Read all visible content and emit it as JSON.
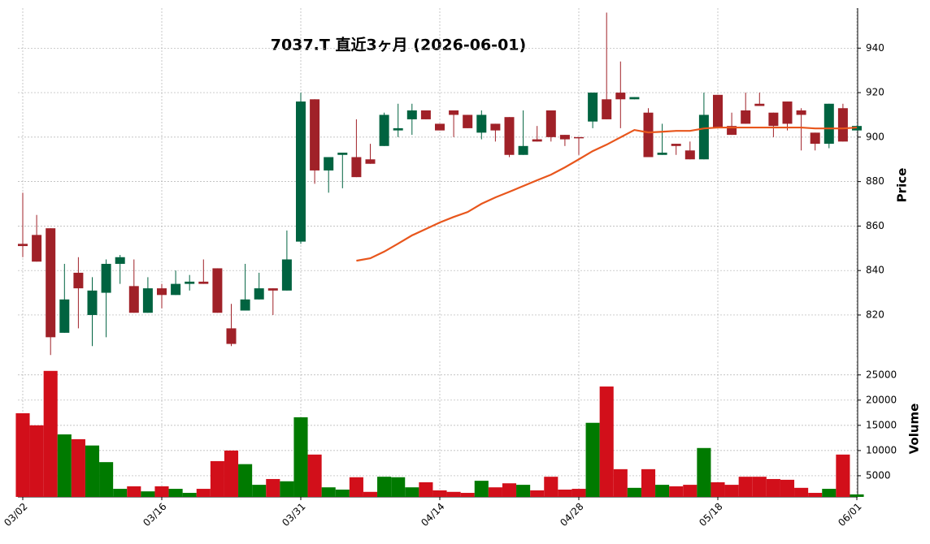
{
  "chart_data": {
    "type": "candlestick",
    "title": "7037.T  直近3ヶ月  (2026-06-01)",
    "ylabel": "Price",
    "categories": [
      "03/02",
      null,
      null,
      null,
      null,
      null,
      null,
      null,
      null,
      null,
      "03/16",
      null,
      null,
      null,
      null,
      null,
      null,
      null,
      null,
      null,
      "03/31",
      null,
      null,
      null,
      null,
      null,
      null,
      null,
      null,
      null,
      "04/14",
      null,
      null,
      null,
      null,
      null,
      null,
      null,
      null,
      null,
      "04/28",
      null,
      null,
      null,
      null,
      null,
      null,
      null,
      null,
      null,
      "05/18",
      null,
      null,
      null,
      null,
      null,
      null,
      null,
      null,
      null,
      "06/01"
    ],
    "open": [
      852,
      856,
      859,
      812,
      839,
      820,
      830,
      843,
      833,
      821,
      832,
      829,
      834,
      835,
      841,
      814,
      822,
      827,
      832,
      831,
      853,
      917,
      885,
      892,
      891,
      890,
      896,
      903,
      908,
      912,
      906,
      912,
      910,
      902,
      906,
      909,
      892,
      899,
      912,
      901,
      900,
      907,
      917,
      920,
      917,
      911,
      892,
      897,
      894,
      890,
      919,
      905,
      912,
      915,
      911,
      916,
      912,
      902,
      897,
      913,
      903
    ],
    "high": [
      875,
      865,
      859,
      843,
      846,
      837,
      845,
      847,
      845,
      837,
      834,
      840,
      838,
      845,
      841,
      825,
      843,
      839,
      832,
      858,
      920,
      917,
      891,
      893,
      908,
      897,
      911,
      915,
      915,
      912,
      906,
      912,
      910,
      912,
      906,
      909,
      912,
      905,
      912,
      901,
      900,
      920,
      956,
      934,
      918,
      913,
      906,
      897,
      898,
      920,
      919,
      911,
      920,
      920,
      911,
      916,
      913,
      902,
      915,
      915,
      905
    ],
    "low": [
      846,
      844,
      802,
      812,
      814,
      806,
      810,
      834,
      821,
      821,
      823,
      829,
      831,
      834,
      821,
      806,
      822,
      827,
      820,
      831,
      852,
      879,
      875,
      877,
      882,
      888,
      896,
      900,
      901,
      908,
      903,
      900,
      904,
      899,
      898,
      891,
      892,
      898,
      898,
      896,
      892,
      904,
      908,
      904,
      917,
      891,
      892,
      892,
      890,
      890,
      904,
      901,
      906,
      914,
      900,
      903,
      894,
      894,
      895,
      898,
      903
    ],
    "close": [
      851,
      844,
      810,
      827,
      832,
      831,
      843,
      846,
      821,
      832,
      829,
      834,
      835,
      834,
      821,
      807,
      827,
      832,
      831,
      845,
      916,
      885,
      891,
      893,
      882,
      888,
      910,
      904,
      912,
      908,
      903,
      910,
      904,
      910,
      903,
      892,
      896,
      898,
      900,
      899,
      899.5,
      920,
      908,
      917,
      918,
      891,
      893,
      896,
      890,
      910,
      904,
      901,
      906,
      914,
      905,
      906,
      910,
      897,
      915,
      898,
      905
    ],
    "up_color": "#006340",
    "down_color": "#a02128",
    "ylim": [
      801,
      958
    ],
    "yticks": [
      820,
      840,
      860,
      880,
      900,
      920,
      940
    ],
    "grid": true,
    "moving_average": {
      "color": "#e8561c",
      "values": [
        null,
        null,
        null,
        null,
        null,
        null,
        null,
        null,
        null,
        null,
        null,
        null,
        null,
        null,
        null,
        null,
        null,
        null,
        null,
        null,
        null,
        null,
        null,
        null,
        844.4,
        845.5,
        848.5,
        852.1,
        855.8,
        858.7,
        861.6,
        864.1,
        866.3,
        870,
        872.9,
        875.4,
        878,
        880.6,
        883.1,
        886.4,
        890,
        893.7,
        896.6,
        899.9,
        903.2,
        902.1,
        902.4,
        902.8,
        902.8,
        903.9,
        904.3,
        904.3,
        904.3,
        904.3,
        904.3,
        904.3,
        904.3,
        903.9,
        903.9,
        903.9,
        904.3
      ]
    },
    "volume": {
      "ylabel": "Volume",
      "up_color": "#007a00",
      "down_color": "#d20f1a",
      "values": [
        17400,
        15000,
        25800,
        13200,
        12250,
        11000,
        7700,
        2400,
        2900,
        1900,
        2900,
        2400,
        1600,
        2400,
        7900,
        10000,
        7300,
        3200,
        4350,
        3900,
        16600,
        9200,
        2700,
        2250,
        4700,
        1800,
        4800,
        4700,
        2700,
        3700,
        2100,
        1800,
        1600,
        4000,
        2700,
        3500,
        3200,
        2100,
        4800,
        2250,
        2400,
        15500,
        22700,
        6300,
        2600,
        6300,
        3200,
        2900,
        3200,
        10500,
        3700,
        3200,
        4800,
        4800,
        4350,
        4200,
        2600,
        1600,
        2400,
        9200,
        1300
      ],
      "ylim": [
        800,
        27700
      ],
      "yticks": [
        5000,
        10000,
        15000,
        20000,
        25000
      ]
    }
  }
}
